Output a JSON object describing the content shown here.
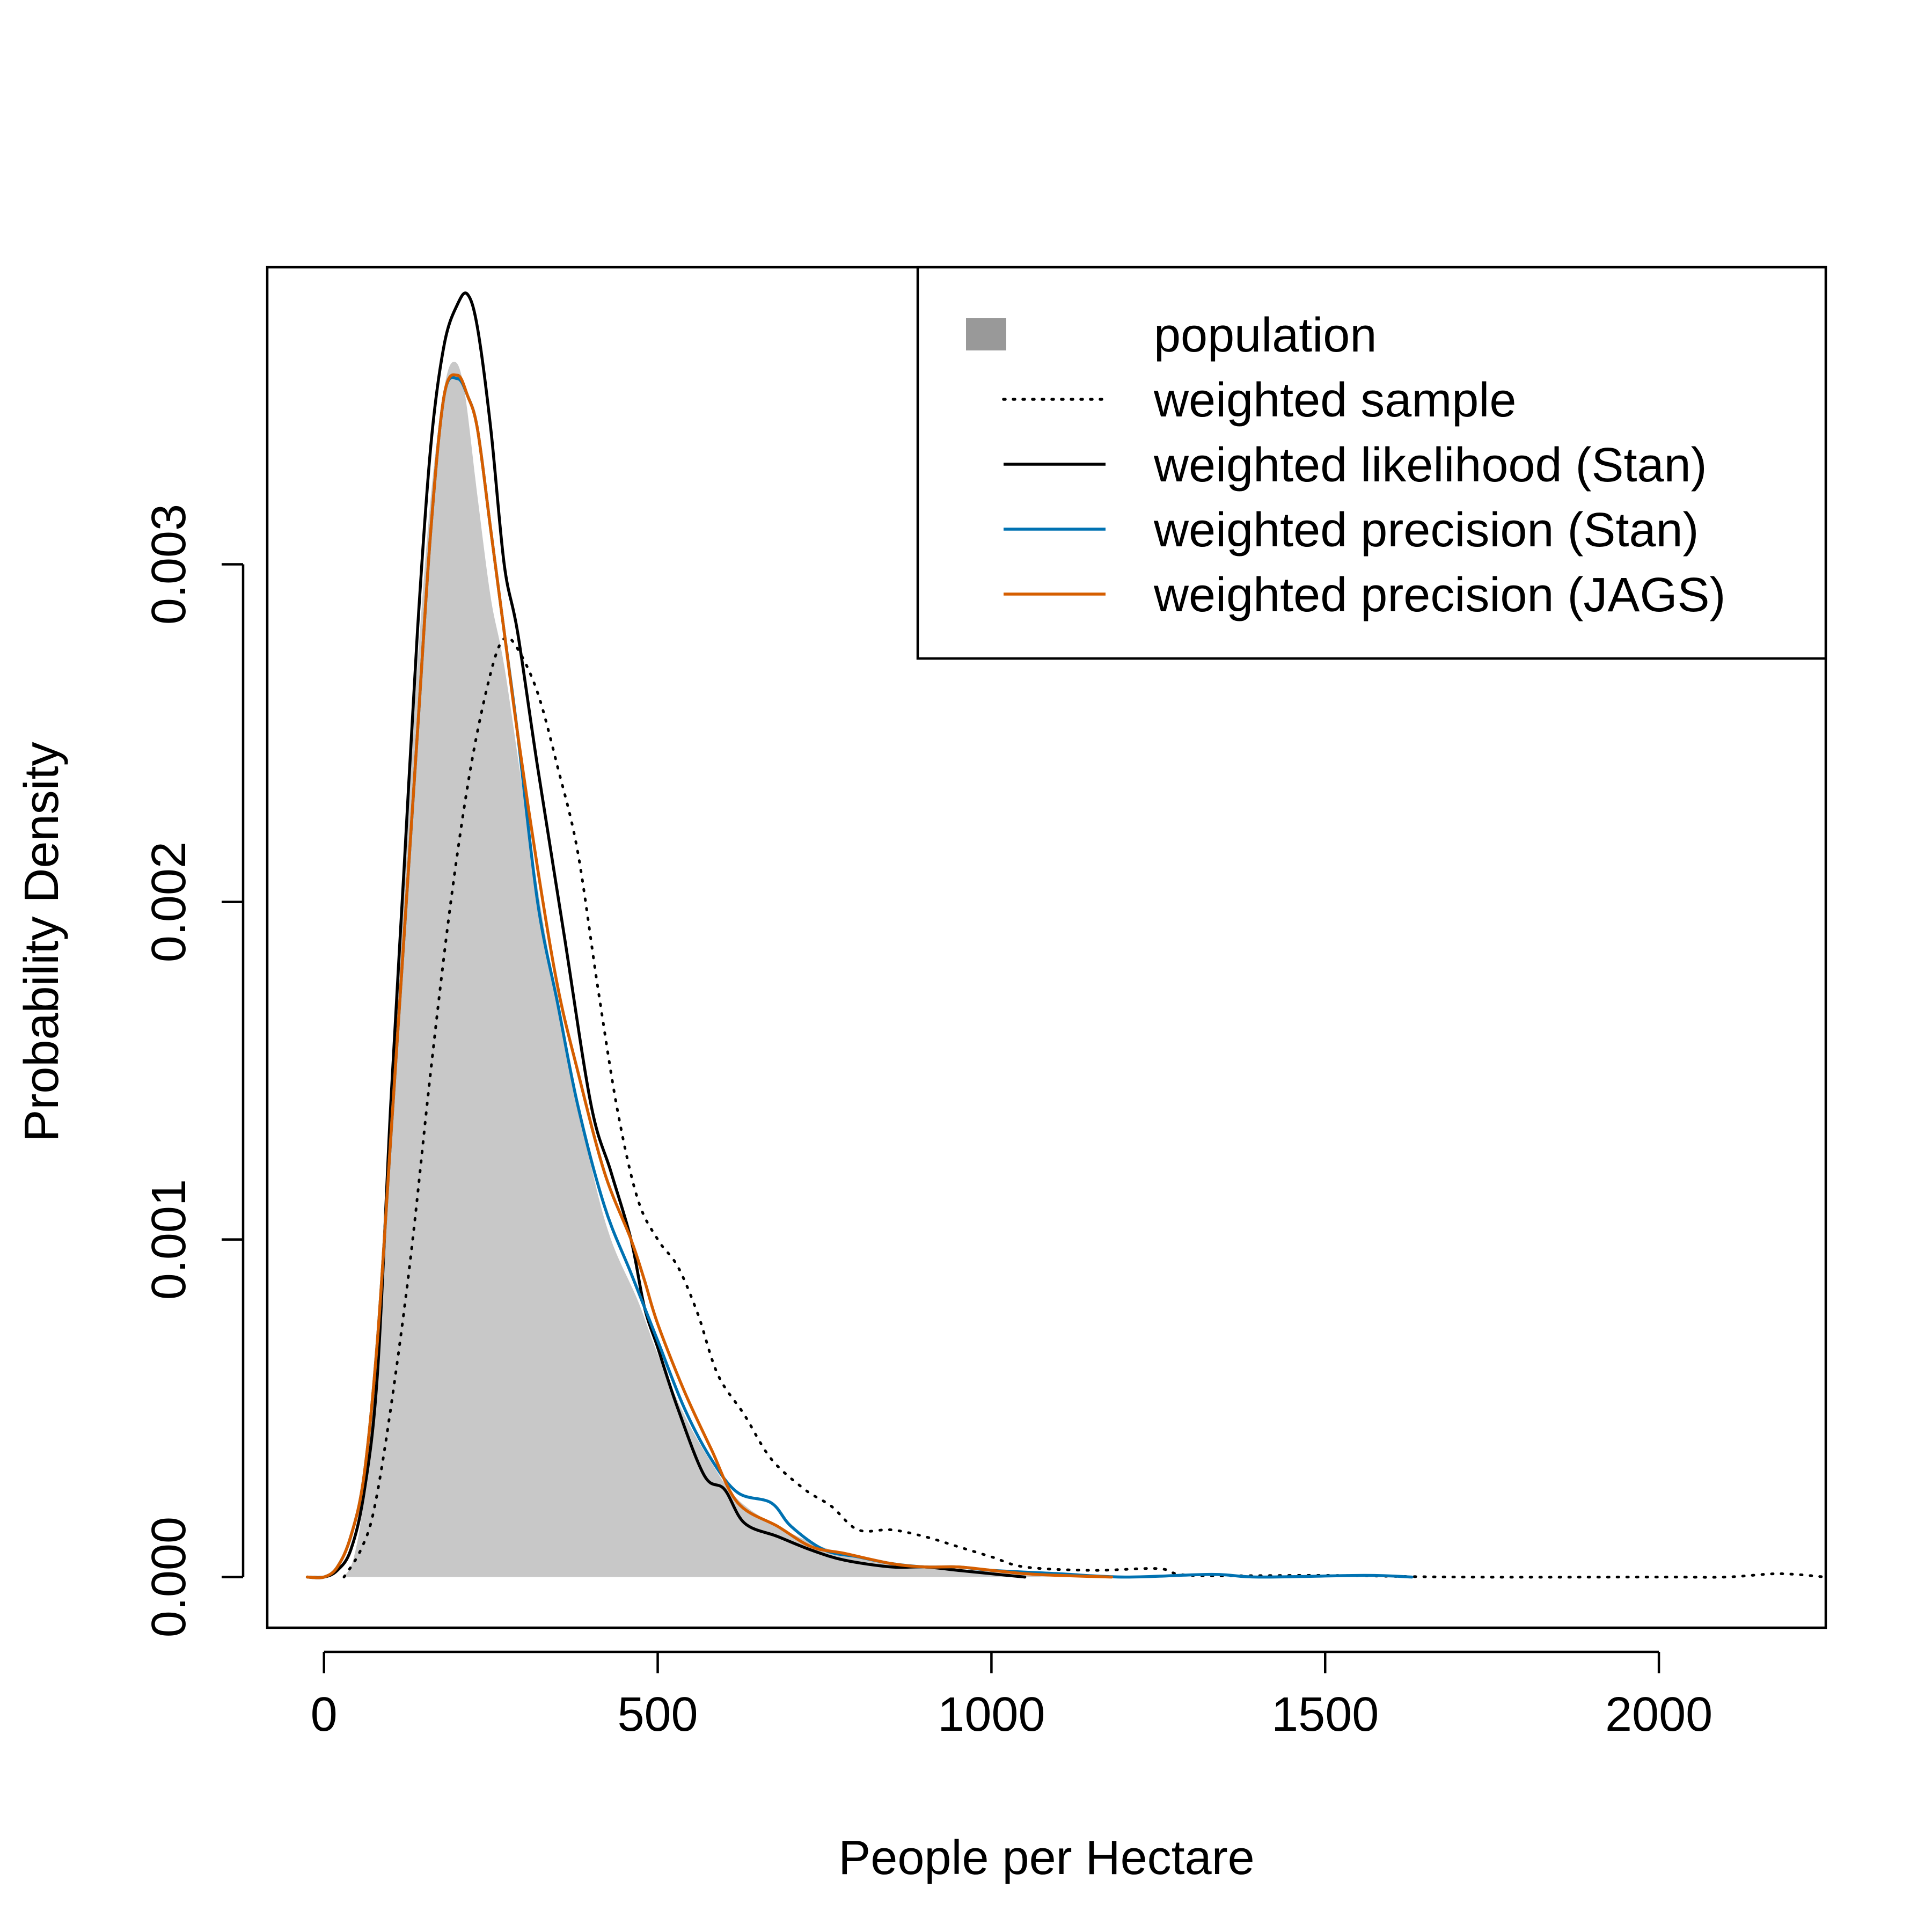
{
  "chart_data": {
    "type": "line",
    "xlabel": "People per Hectare",
    "ylabel": "Probability Density",
    "xlim": [
      -85,
      2250
    ],
    "ylim": [
      -0.00015,
      0.00388
    ],
    "x_ticks": [
      0,
      500,
      1000,
      1500,
      2000
    ],
    "x_tick_labels": [
      "0",
      "500",
      "1000",
      "1500",
      "2000"
    ],
    "y_ticks": [
      0.0,
      0.001,
      0.002,
      0.003
    ],
    "y_tick_labels": [
      "0.000",
      "0.001",
      "0.002",
      "0.003"
    ],
    "grid": false,
    "legend_position": "top-right",
    "series": [
      {
        "name": "population",
        "style": "filled-area",
        "color": "#c8c8c8",
        "legend_color": "#999999",
        "points": [
          [
            30,
            0.0
          ],
          [
            45,
            6e-05
          ],
          [
            60,
            0.00025
          ],
          [
            80,
            0.00075
          ],
          [
            100,
            0.0014
          ],
          [
            120,
            0.0021
          ],
          [
            140,
            0.0027
          ],
          [
            160,
            0.0032
          ],
          [
            180,
            0.00352
          ],
          [
            195,
            0.0036
          ],
          [
            210,
            0.00352
          ],
          [
            230,
            0.0032
          ],
          [
            250,
            0.0029
          ],
          [
            270,
            0.0027
          ],
          [
            300,
            0.0023
          ],
          [
            330,
            0.00192
          ],
          [
            360,
            0.0016
          ],
          [
            400,
            0.00122
          ],
          [
            430,
            0.001
          ],
          [
            470,
            0.00082
          ],
          [
            500,
            0.00066
          ],
          [
            540,
            0.00048
          ],
          [
            580,
            0.00034
          ],
          [
            620,
            0.00023
          ],
          [
            680,
            0.00015
          ],
          [
            760,
            8e-05
          ],
          [
            850,
            4e-05
          ],
          [
            950,
            2e-05
          ],
          [
            1050,
            5e-06
          ],
          [
            1100,
            0.0
          ]
        ]
      },
      {
        "name": "weighted sample",
        "style": "dotted",
        "color": "#000000",
        "points": [
          [
            30,
            0.0
          ],
          [
            55,
            8e-05
          ],
          [
            75,
            0.0002
          ],
          [
            100,
            0.0005
          ],
          [
            130,
            0.00095
          ],
          [
            160,
            0.0015
          ],
          [
            190,
            0.002
          ],
          [
            220,
            0.0024
          ],
          [
            250,
            0.00268
          ],
          [
            270,
            0.00278
          ],
          [
            290,
            0.00275
          ],
          [
            320,
            0.00262
          ],
          [
            350,
            0.0024
          ],
          [
            380,
            0.00215
          ],
          [
            410,
            0.00175
          ],
          [
            440,
            0.00138
          ],
          [
            470,
            0.00112
          ],
          [
            500,
            0.001
          ],
          [
            530,
            0.00092
          ],
          [
            560,
            0.00078
          ],
          [
            590,
            0.0006
          ],
          [
            630,
            0.00048
          ],
          [
            670,
            0.00035
          ],
          [
            720,
            0.00026
          ],
          [
            760,
            0.00021
          ],
          [
            800,
            0.00014
          ],
          [
            850,
            0.00014
          ],
          [
            900,
            0.00012
          ],
          [
            950,
            9e-05
          ],
          [
            1000,
            6e-05
          ],
          [
            1050,
            3e-05
          ],
          [
            1150,
            2e-05
          ],
          [
            1250,
            2.5e-05
          ],
          [
            1300,
            5e-06
          ],
          [
            1500,
            5e-06
          ],
          [
            1700,
            0.0
          ],
          [
            2000,
            0.0
          ],
          [
            2100,
            0.0
          ],
          [
            2180,
            1e-05
          ],
          [
            2250,
            0.0
          ]
        ]
      },
      {
        "name": "weighted likelihood (Stan)",
        "style": "solid",
        "color": "#000000",
        "points": [
          [
            -25,
            0.0
          ],
          [
            0,
            0.0
          ],
          [
            20,
            2e-05
          ],
          [
            40,
            8e-05
          ],
          [
            60,
            0.00025
          ],
          [
            80,
            0.0006
          ],
          [
            100,
            0.0014
          ],
          [
            120,
            0.0021
          ],
          [
            140,
            0.0028
          ],
          [
            160,
            0.00335
          ],
          [
            180,
            0.00365
          ],
          [
            200,
            0.00377
          ],
          [
            215,
            0.0038
          ],
          [
            230,
            0.0037
          ],
          [
            250,
            0.0034
          ],
          [
            270,
            0.003
          ],
          [
            290,
            0.0028
          ],
          [
            320,
            0.0024
          ],
          [
            360,
            0.0019
          ],
          [
            400,
            0.0014
          ],
          [
            430,
            0.0012
          ],
          [
            460,
            0.001
          ],
          [
            480,
            0.0008
          ],
          [
            500,
            0.00068
          ],
          [
            530,
            0.0005
          ],
          [
            570,
            0.0003
          ],
          [
            600,
            0.00026
          ],
          [
            630,
            0.00016
          ],
          [
            680,
            0.00012
          ],
          [
            730,
            8e-05
          ],
          [
            780,
            5e-05
          ],
          [
            850,
            3e-05
          ],
          [
            900,
            3e-05
          ],
          [
            950,
            2e-05
          ],
          [
            1000,
            1e-05
          ],
          [
            1050,
            0.0
          ]
        ]
      },
      {
        "name": "weighted precision (Stan)",
        "style": "solid",
        "color": "#0072b2",
        "points": [
          [
            -25,
            0.0
          ],
          [
            0,
            0.0
          ],
          [
            20,
            3e-05
          ],
          [
            40,
            0.00012
          ],
          [
            60,
            0.0003
          ],
          [
            80,
            0.0007
          ],
          [
            100,
            0.0013
          ],
          [
            120,
            0.0019
          ],
          [
            140,
            0.0025
          ],
          [
            160,
            0.0031
          ],
          [
            180,
            0.0035
          ],
          [
            200,
            0.00355
          ],
          [
            215,
            0.0035
          ],
          [
            230,
            0.0034
          ],
          [
            250,
            0.0031
          ],
          [
            270,
            0.0028
          ],
          [
            290,
            0.0025
          ],
          [
            320,
            0.002
          ],
          [
            350,
            0.0017
          ],
          [
            380,
            0.0014
          ],
          [
            420,
            0.0011
          ],
          [
            460,
            0.0009
          ],
          [
            500,
            0.0007
          ],
          [
            540,
            0.0005
          ],
          [
            580,
            0.00035
          ],
          [
            620,
            0.00025
          ],
          [
            670,
            0.00022
          ],
          [
            700,
            0.00015
          ],
          [
            750,
            8e-05
          ],
          [
            800,
            6e-05
          ],
          [
            850,
            4e-05
          ],
          [
            900,
            3e-05
          ],
          [
            950,
            3e-05
          ],
          [
            1000,
            2e-05
          ],
          [
            1100,
            1e-05
          ],
          [
            1200,
            0.0
          ],
          [
            1330,
            8e-06
          ],
          [
            1400,
            0.0
          ],
          [
            1560,
            5e-06
          ],
          [
            1630,
            0.0
          ]
        ]
      },
      {
        "name": "weighted precision (JAGS)",
        "style": "solid",
        "color": "#d55e00",
        "points": [
          [
            -25,
            0.0
          ],
          [
            0,
            0.0
          ],
          [
            20,
            3e-05
          ],
          [
            40,
            0.00012
          ],
          [
            60,
            0.0003
          ],
          [
            80,
            0.0007
          ],
          [
            100,
            0.0013
          ],
          [
            120,
            0.0019
          ],
          [
            140,
            0.0025
          ],
          [
            160,
            0.0031
          ],
          [
            180,
            0.0035
          ],
          [
            200,
            0.00356
          ],
          [
            215,
            0.0035
          ],
          [
            230,
            0.0034
          ],
          [
            250,
            0.0031
          ],
          [
            270,
            0.0028
          ],
          [
            290,
            0.0025
          ],
          [
            320,
            0.0021
          ],
          [
            350,
            0.00175
          ],
          [
            380,
            0.0015
          ],
          [
            420,
            0.0012
          ],
          [
            460,
            0.001
          ],
          [
            480,
            0.00088
          ],
          [
            500,
            0.00075
          ],
          [
            540,
            0.00055
          ],
          [
            580,
            0.00038
          ],
          [
            620,
            0.00022
          ],
          [
            680,
            0.00015
          ],
          [
            730,
            9e-05
          ],
          [
            780,
            7e-05
          ],
          [
            850,
            4e-05
          ],
          [
            900,
            3e-05
          ],
          [
            950,
            3e-05
          ],
          [
            1000,
            2e-05
          ],
          [
            1050,
            1e-05
          ],
          [
            1100,
            5e-06
          ],
          [
            1180,
            0.0
          ]
        ]
      }
    ]
  }
}
